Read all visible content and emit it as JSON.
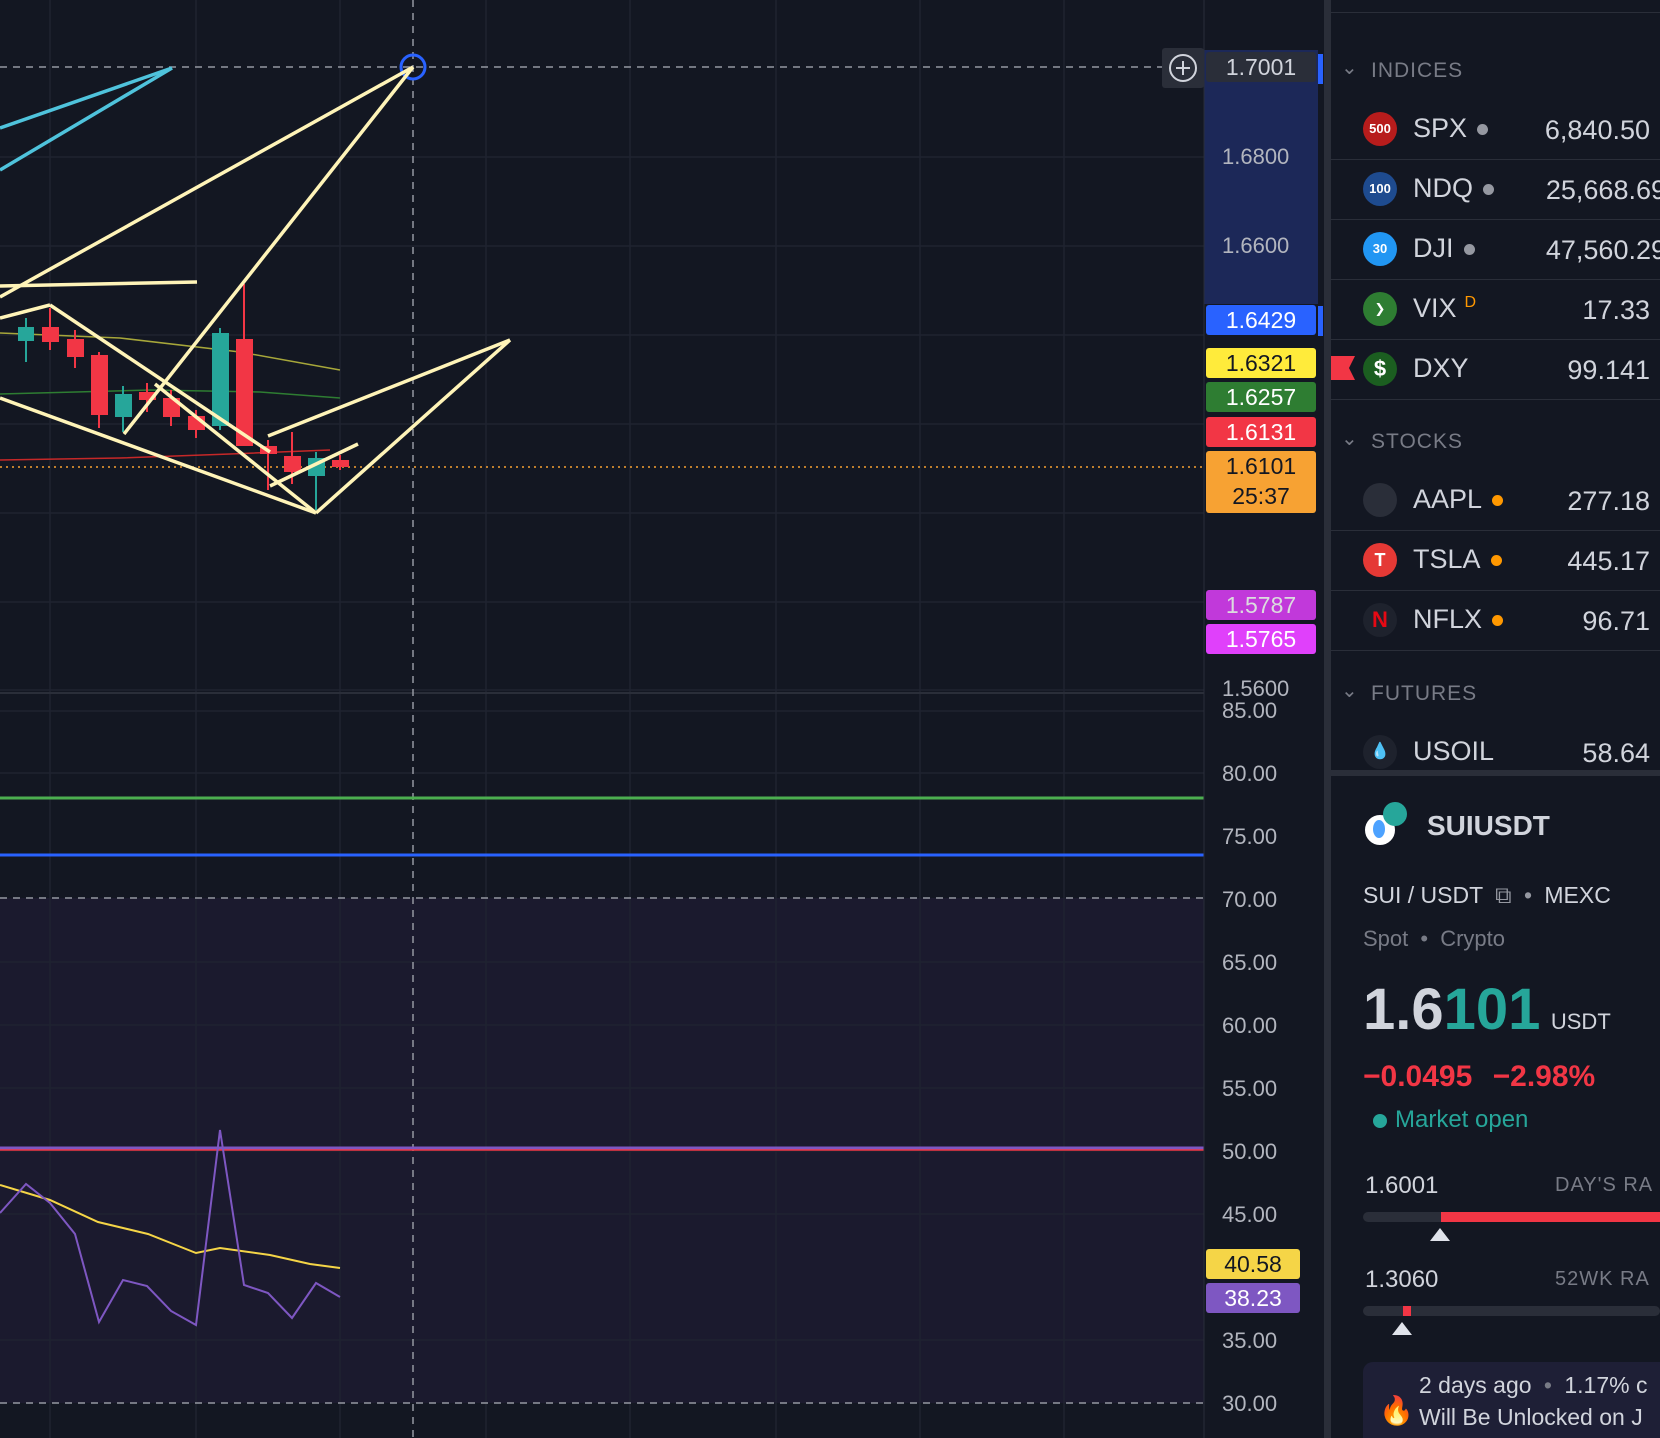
{
  "colors": {
    "bg": "#131722",
    "up": "#26a69a",
    "down": "#f23645",
    "accent": "#2962ff"
  },
  "price_axis": {
    "crosshair_price": "1.7001",
    "labels": [
      "1.6800",
      "1.6600",
      "1.5600"
    ],
    "tags": [
      {
        "value": "1.6429",
        "bg": "#2962ff",
        "fg": "#ffffff"
      },
      {
        "value": "1.6321",
        "bg": "#ffeb3b",
        "fg": "#131722"
      },
      {
        "value": "1.6257",
        "bg": "#2e7d32",
        "fg": "#ffffff"
      },
      {
        "value": "1.6131",
        "bg": "#f23645",
        "fg": "#ffffff"
      },
      {
        "value": "1.5787",
        "bg": "#e040fb",
        "fg": "#ffffff"
      },
      {
        "value": "1.5765",
        "bg": "#e040fb",
        "fg": "#ffffff"
      }
    ],
    "last_price": "1.6101",
    "countdown": "25:37"
  },
  "rsi_axis": {
    "labels": [
      "85.00",
      "80.00",
      "75.00",
      "70.00",
      "65.00",
      "60.00",
      "55.00",
      "50.00",
      "45.00",
      "35.00",
      "30.00"
    ],
    "tags": [
      {
        "value": "40.58",
        "bg": "#f5d547",
        "fg": "#131722"
      },
      {
        "value": "38.23",
        "bg": "#7e57c2",
        "fg": "#ffffff"
      }
    ]
  },
  "watchlist": {
    "sections": [
      {
        "title": "INDICES",
        "rows": [
          {
            "logo": "500",
            "logo_bg": "#b71c1c",
            "symbol": "SPX",
            "dot": "#9598a1",
            "price": "6,840.50"
          },
          {
            "logo": "100",
            "logo_bg": "#1e4b8f",
            "symbol": "NDQ",
            "dot": "#9598a1",
            "price": "25,668.69"
          },
          {
            "logo": "30",
            "logo_bg": "#2196f3",
            "symbol": "DJI",
            "dot": "#9598a1",
            "price": "47,560.29"
          },
          {
            "logo": "❯",
            "logo_bg": "#2e7d32",
            "symbol": "VIX",
            "sup": "D",
            "price": "17.33"
          },
          {
            "logo": "$",
            "logo_bg": "#1b5e20",
            "symbol": "DXY",
            "price": "99.141"
          }
        ]
      },
      {
        "title": "STOCKS",
        "rows": [
          {
            "logo": "",
            "logo_bg": "#2a2e39",
            "symbol": "AAPL",
            "dot": "#ff9800",
            "price": "277.18"
          },
          {
            "logo": "T",
            "logo_bg": "#e53935",
            "symbol": "TSLA",
            "dot": "#ff9800",
            "price": "445.17"
          },
          {
            "logo": "N",
            "logo_bg": "#1e222d",
            "symbol": "NFLX",
            "dot": "#ff9800",
            "price": "96.71"
          }
        ]
      },
      {
        "title": "FUTURES",
        "rows": [
          {
            "logo": "💧",
            "logo_bg": "#1e222d",
            "symbol": "USOIL",
            "price": "58.64"
          }
        ]
      }
    ]
  },
  "detail": {
    "symbol": "SUIUSDT",
    "pair": "SUI / USDT",
    "exchange": "MEXC",
    "type": "Spot",
    "category": "Crypto",
    "price_main": "1.6",
    "price_tail": "101",
    "currency": "USDT",
    "change": "−0.0495",
    "change_pct": "−2.98%",
    "market_status": "Market open",
    "day_low": "1.6001",
    "day_range_label": "DAY'S RA",
    "wk_low": "1.3060",
    "wk_range_label": "52WK RA",
    "news_time": "2 days ago",
    "news_pct": "1.17% c",
    "news_text": "Will Be Unlocked on J"
  }
}
